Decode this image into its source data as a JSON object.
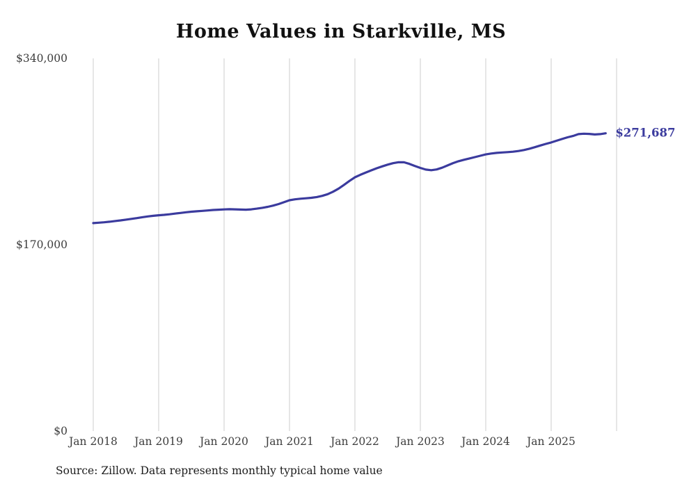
{
  "page": {
    "title": "Home Values in Starkville, MS",
    "source_note": "Source: Zillow. Data represents monthly typical home value"
  },
  "chart_data": {
    "type": "line",
    "title": "Home Values in Starkville, MS",
    "x_start": "2018-01",
    "x_end": "2025-11",
    "x_interval": "monthly",
    "x_tick_labels": [
      "Jan 2018",
      "Jan 2019",
      "Jan 2020",
      "Jan 2021",
      "Jan 2022",
      "Jan 2023",
      "Jan 2024",
      "Jan 2025"
    ],
    "y_ticks": [
      {
        "value": 0,
        "label": "$0"
      },
      {
        "value": 170000,
        "label": "$170,000"
      },
      {
        "value": 340000,
        "label": "$340,000"
      }
    ],
    "ylim": [
      0,
      340000
    ],
    "grid": "vertical-yearly",
    "vertical_gridline_count": 9,
    "gridline_color": "#cccccc",
    "line_color": "#3b3b9e",
    "axis_label_color": "#3d3d3d",
    "last_value_label": "$271,687",
    "last_value": 271687,
    "source": "Source: Zillow. Data represents monthly typical home value",
    "series": [
      {
        "name": "Monthly typical home value",
        "values": [
          189700,
          190100,
          190500,
          191000,
          191600,
          192200,
          192900,
          193600,
          194300,
          195100,
          195800,
          196400,
          196900,
          197300,
          197800,
          198400,
          199000,
          199600,
          200100,
          200500,
          200900,
          201300,
          201700,
          202000,
          202200,
          202400,
          202300,
          202100,
          202000,
          202300,
          202900,
          203700,
          204600,
          205700,
          207100,
          208900,
          210600,
          211400,
          212000,
          212400,
          212800,
          213500,
          214600,
          216100,
          218400,
          221200,
          224600,
          228200,
          231500,
          233800,
          235900,
          237900,
          239800,
          241500,
          243100,
          244400,
          245300,
          245200,
          243800,
          241800,
          240100,
          238600,
          238000,
          238700,
          240300,
          242400,
          244500,
          246200,
          247500,
          248700,
          249900,
          251200,
          252400,
          253200,
          253800,
          254200,
          254500,
          254900,
          255500,
          256400,
          257600,
          259000,
          260500,
          262000,
          263300,
          264900,
          266500,
          268000,
          269200,
          270900,
          271300,
          271100,
          270600,
          270900,
          271687
        ]
      }
    ]
  }
}
